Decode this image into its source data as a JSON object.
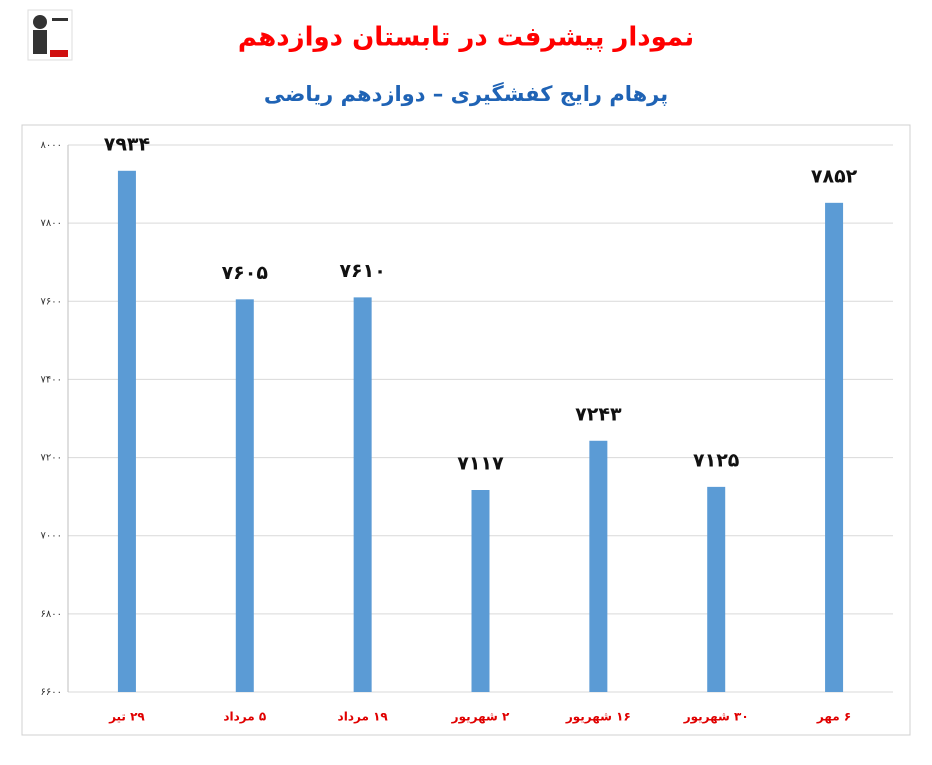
{
  "chart_data": {
    "type": "bar",
    "title": "نمودار پیشرفت در تابستان دوازدهم",
    "subtitle": "پرهام رایج کفشگیری – دوازدهم ریاضی",
    "categories": [
      "۲۹ تیر",
      "۵ مرداد",
      "۱۹ مرداد",
      "۲ شهریور",
      "۱۶ شهریور",
      "۳۰ شهریور",
      "۶ مهر"
    ],
    "values": [
      7934,
      7605,
      7610,
      7117,
      7243,
      7125,
      7852
    ],
    "value_labels": [
      "۷۹۳۴",
      "۷۶۰۵",
      "۷۶۱۰",
      "۷۱۱۷",
      "۷۲۴۳",
      "۷۱۲۵",
      "۷۸۵۲"
    ],
    "color": "#5b9bd5",
    "ylim": [
      6600,
      8000
    ],
    "yticks": [
      {
        "value": 6600,
        "label": "۶۶۰۰"
      },
      {
        "value": 6800,
        "label": "۶۸۰۰"
      },
      {
        "value": 7000,
        "label": "۷۰۰۰"
      },
      {
        "value": 7200,
        "label": "۷۲۰۰"
      },
      {
        "value": 7400,
        "label": "۷۴۰۰"
      },
      {
        "value": 7600,
        "label": "۷۶۰۰"
      },
      {
        "value": 7800,
        "label": "۷۸۰۰"
      },
      {
        "value": 8000,
        "label": "۸۰۰۰"
      }
    ],
    "grid": true
  }
}
